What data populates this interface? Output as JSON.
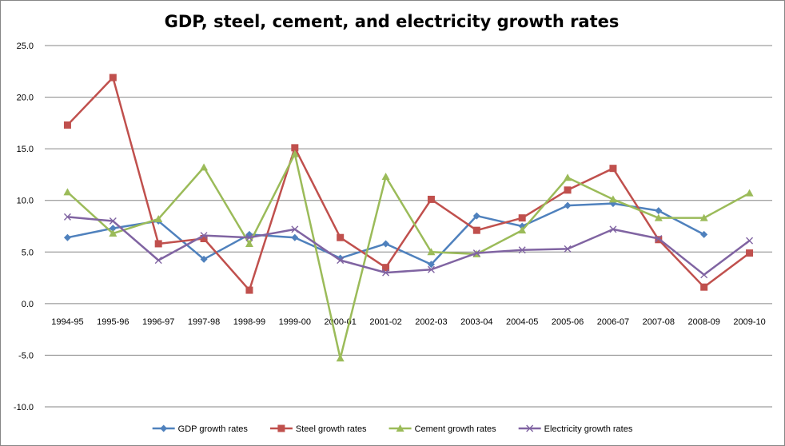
{
  "chart_data": {
    "type": "line",
    "title": "GDP, steel, cement, and electricity growth rates",
    "xlabel": "",
    "ylabel": "",
    "ylim": [
      -10,
      25
    ],
    "yticks": [
      -10,
      -5,
      0,
      5,
      10,
      15,
      20,
      25
    ],
    "ytick_labels": [
      "-10.0",
      "-5.0",
      "0.0",
      "5.0",
      "10.0",
      "15.0",
      "20.0",
      "25.0"
    ],
    "grid": true,
    "legend_position": "bottom",
    "categories": [
      "1994-95",
      "1995-96",
      "1996-97",
      "1997-98",
      "1998-99",
      "1999-00",
      "2000-01",
      "2001-02",
      "2002-03",
      "2003-04",
      "2004-05",
      "2005-06",
      "2006-07",
      "2007-08",
      "2008-09",
      "2009-10"
    ],
    "series": [
      {
        "name": "GDP growth rates",
        "color": "#4F81BD",
        "marker": "diamond",
        "values": [
          6.4,
          7.3,
          8.0,
          4.3,
          6.7,
          6.4,
          4.4,
          5.8,
          3.8,
          8.5,
          7.5,
          9.5,
          9.7,
          9.0,
          6.7,
          null
        ]
      },
      {
        "name": "Steel growth rates",
        "color": "#C0504D",
        "marker": "square",
        "values": [
          17.3,
          21.9,
          5.8,
          6.3,
          1.3,
          15.1,
          6.4,
          3.5,
          10.1,
          7.1,
          8.3,
          11.0,
          13.1,
          6.2,
          1.6,
          4.9
        ]
      },
      {
        "name": "Cement growth rates",
        "color": "#9BBB59",
        "marker": "triangle",
        "values": [
          10.8,
          6.8,
          8.2,
          13.2,
          5.8,
          14.5,
          -5.3,
          12.3,
          5.0,
          4.8,
          7.1,
          12.2,
          10.1,
          8.3,
          8.3,
          10.7
        ]
      },
      {
        "name": "Electricity growth rates",
        "color": "#8064A2",
        "marker": "x",
        "values": [
          8.4,
          8.0,
          4.2,
          6.6,
          6.4,
          7.2,
          4.2,
          3.0,
          3.3,
          4.9,
          5.2,
          5.3,
          7.2,
          6.3,
          2.8,
          6.1
        ]
      }
    ]
  }
}
